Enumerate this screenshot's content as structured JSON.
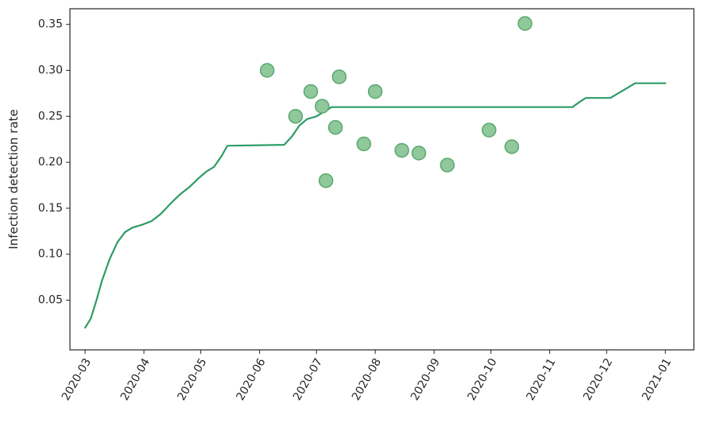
{
  "chart_data": {
    "type": "line+scatter",
    "ylabel": "Infection detection rate",
    "xlabel": "",
    "title": "",
    "x_axis_type": "date",
    "x_ticks": [
      "2020-03",
      "2020-04",
      "2020-05",
      "2020-06",
      "2020-07",
      "2020-08",
      "2020-09",
      "2020-10",
      "2020-11",
      "2020-12",
      "2021-01"
    ],
    "y_ticks": [
      0.05,
      0.1,
      0.15,
      0.2,
      0.25,
      0.3,
      0.35
    ],
    "y_tick_labels": [
      "0.05",
      "0.10",
      "0.15",
      "0.20",
      "0.25",
      "0.30",
      "0.35"
    ],
    "xlim": [
      "2020-02-22",
      "2021-01-16"
    ],
    "ylim": [
      -0.004,
      0.367
    ],
    "grid": false,
    "colors": {
      "line": "#2e9c66",
      "marker_fill": "#8fc89a",
      "marker_edge": "#5aa870",
      "axis": "#262626"
    },
    "series": [
      {
        "type": "line",
        "points": [
          [
            "2020-03-01",
            0.02
          ],
          [
            "2020-03-04",
            0.03
          ],
          [
            "2020-03-07",
            0.05
          ],
          [
            "2020-03-10",
            0.072
          ],
          [
            "2020-03-14",
            0.095
          ],
          [
            "2020-03-18",
            0.113
          ],
          [
            "2020-03-22",
            0.124
          ],
          [
            "2020-03-26",
            0.129
          ],
          [
            "2020-03-31",
            0.132
          ],
          [
            "2020-04-05",
            0.136
          ],
          [
            "2020-04-10",
            0.144
          ],
          [
            "2020-04-15",
            0.155
          ],
          [
            "2020-04-20",
            0.165
          ],
          [
            "2020-04-25",
            0.173
          ],
          [
            "2020-04-30",
            0.183
          ],
          [
            "2020-05-04",
            0.19
          ],
          [
            "2020-05-08",
            0.195
          ],
          [
            "2020-05-12",
            0.207
          ],
          [
            "2020-05-15",
            0.218
          ],
          [
            "2020-06-14",
            0.219
          ],
          [
            "2020-06-18",
            0.228
          ],
          [
            "2020-06-22",
            0.24
          ],
          [
            "2020-06-26",
            0.247
          ],
          [
            "2020-07-01",
            0.25
          ],
          [
            "2020-07-05",
            0.255
          ],
          [
            "2020-07-09",
            0.26
          ],
          [
            "2020-11-13",
            0.26
          ],
          [
            "2020-11-17",
            0.266
          ],
          [
            "2020-11-20",
            0.27
          ],
          [
            "2020-12-03",
            0.27
          ],
          [
            "2020-12-07",
            0.275
          ],
          [
            "2020-12-12",
            0.281
          ],
          [
            "2020-12-16",
            0.286
          ],
          [
            "2021-01-01",
            0.286
          ]
        ]
      },
      {
        "type": "scatter",
        "points": [
          [
            "2020-06-05",
            0.3
          ],
          [
            "2020-06-20",
            0.25
          ],
          [
            "2020-06-28",
            0.277
          ],
          [
            "2020-07-04",
            0.261
          ],
          [
            "2020-07-06",
            0.18
          ],
          [
            "2020-07-11",
            0.238
          ],
          [
            "2020-07-13",
            0.293
          ],
          [
            "2020-07-26",
            0.22
          ],
          [
            "2020-08-01",
            0.277
          ],
          [
            "2020-08-15",
            0.213
          ],
          [
            "2020-08-24",
            0.21
          ],
          [
            "2020-09-08",
            0.197
          ],
          [
            "2020-09-30",
            0.235
          ],
          [
            "2020-10-12",
            0.217
          ],
          [
            "2020-10-19",
            0.351
          ]
        ]
      }
    ]
  }
}
